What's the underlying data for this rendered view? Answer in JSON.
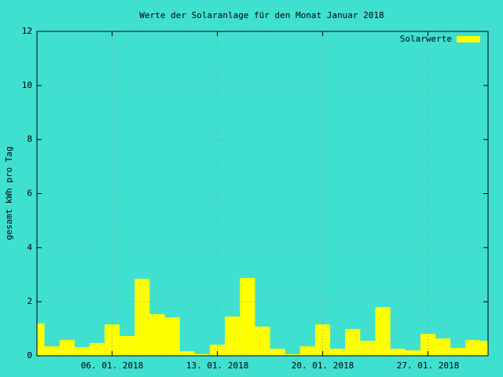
{
  "chart_data": {
    "type": "bar",
    "title": "Werte der Solaranlage für den Monat Januar 2018",
    "y_label": "gesamt kWh pro Tag",
    "x": [
      1,
      2,
      3,
      4,
      5,
      6,
      7,
      8,
      9,
      10,
      11,
      12,
      13,
      14,
      15,
      16,
      17,
      18,
      19,
      20,
      21,
      22,
      23,
      24,
      25,
      26,
      27,
      28,
      29,
      30,
      31
    ],
    "series": [
      {
        "name": "Solarwerte",
        "color": "#ffff00",
        "values": [
          1.2,
          0.35,
          0.58,
          0.32,
          0.47,
          1.16,
          0.73,
          2.85,
          1.54,
          1.42,
          0.17,
          0.06,
          0.41,
          1.45,
          2.88,
          1.08,
          0.26,
          0.06,
          0.35,
          1.16,
          0.26,
          0.99,
          0.55,
          1.8,
          0.26,
          0.2,
          0.81,
          0.64,
          0.29,
          0.58,
          0.55
        ]
      }
    ],
    "xlim": [
      1,
      31
    ],
    "xticks": [
      {
        "value": 6,
        "label": "06. 01. 2018"
      },
      {
        "value": 13,
        "label": "13. 01. 2018"
      },
      {
        "value": 20,
        "label": "20. 01. 2018"
      },
      {
        "value": 27,
        "label": "27. 01. 2018"
      }
    ],
    "ylim": [
      0,
      12
    ],
    "yticks": [
      0,
      2,
      4,
      6,
      8,
      10,
      12
    ],
    "grid": true,
    "legend": "top-right",
    "background": "#40e0d0"
  }
}
